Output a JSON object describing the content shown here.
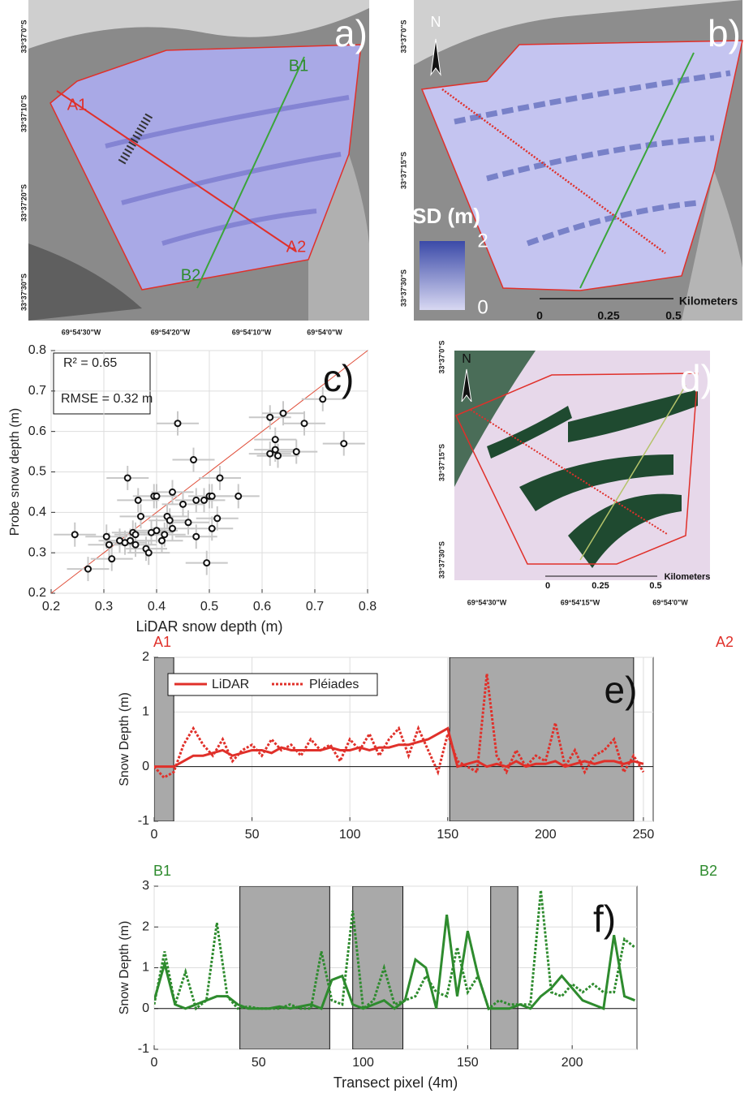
{
  "maps": {
    "a": {
      "label": "a)",
      "transects": [
        "A1",
        "A2",
        "B1",
        "B2"
      ],
      "lat_labels": [
        "33°37'0\"S",
        "33°37'10\"S",
        "33°37'20\"S",
        "33°37'30\"S"
      ],
      "lon_labels": [
        "69°54'30\"W",
        "69°54'20\"W",
        "69°54'10\"W",
        "69°54'0\"W"
      ]
    },
    "b": {
      "label": "b)",
      "north": "N",
      "legend_title": "SD (m)",
      "legend_max": "2",
      "legend_min": "0",
      "scale": [
        "0",
        "0.25",
        "0.5"
      ],
      "scale_unit": "Kilometers",
      "lat_labels": [
        "33°37'0\"S",
        "33°37'15\"S",
        "33°37'30\"S"
      ]
    },
    "d": {
      "label": "d)",
      "north": "N",
      "scale": [
        "0",
        "0.25",
        "0.5"
      ],
      "scale_unit": "Kilometers",
      "lat_labels": [
        "33°37'0\"S",
        "33°37'15\"S",
        "33°37'30\"S"
      ],
      "lon_labels": [
        "69°54'30\"W",
        "69°54'15\"W",
        "69°54'0\"W"
      ]
    }
  },
  "chart_data": [
    {
      "type": "scatter",
      "label": "c)",
      "annotations": [
        "R² = 0.65",
        "RMSE = 0.32 m"
      ],
      "x_label": "LiDAR snow depth (m)",
      "y_label": "Probe snow depth (m)",
      "xlim": [
        0.2,
        0.8
      ],
      "ylim": [
        0.2,
        0.8
      ],
      "xticks": [
        0.2,
        0.3,
        0.4,
        0.5,
        0.6,
        0.7,
        0.8
      ],
      "yticks": [
        0.2,
        0.3,
        0.4,
        0.5,
        0.6,
        0.7,
        0.8
      ],
      "grid": true,
      "color": "#111111",
      "error_color": "#c8c8c8",
      "reference_line_color": "#e0503c",
      "x_error": 0.04,
      "y_error": 0.03,
      "x": [
        0.245,
        0.27,
        0.305,
        0.31,
        0.315,
        0.33,
        0.34,
        0.345,
        0.35,
        0.355,
        0.36,
        0.36,
        0.365,
        0.37,
        0.38,
        0.385,
        0.39,
        0.395,
        0.4,
        0.4,
        0.41,
        0.415,
        0.42,
        0.425,
        0.43,
        0.43,
        0.44,
        0.45,
        0.46,
        0.47,
        0.475,
        0.475,
        0.49,
        0.495,
        0.5,
        0.505,
        0.505,
        0.515,
        0.52,
        0.555,
        0.615,
        0.615,
        0.625,
        0.625,
        0.63,
        0.64,
        0.665,
        0.68,
        0.715,
        0.755
      ],
      "y": [
        0.345,
        0.26,
        0.34,
        0.32,
        0.285,
        0.33,
        0.325,
        0.485,
        0.33,
        0.35,
        0.345,
        0.32,
        0.43,
        0.39,
        0.31,
        0.3,
        0.35,
        0.44,
        0.44,
        0.355,
        0.33,
        0.345,
        0.39,
        0.38,
        0.36,
        0.45,
        0.62,
        0.42,
        0.375,
        0.53,
        0.43,
        0.34,
        0.43,
        0.275,
        0.44,
        0.44,
        0.36,
        0.385,
        0.485,
        0.44,
        0.545,
        0.635,
        0.555,
        0.58,
        0.54,
        0.645,
        0.55,
        0.62,
        0.68,
        0.57
      ]
    },
    {
      "type": "line",
      "label": "e)",
      "start": "A1",
      "end": "A2",
      "label_color": "#e0302a",
      "y_label": "Snow Depth (m)",
      "xlim": [
        0,
        255
      ],
      "ylim": [
        -1,
        2
      ],
      "xticks": [
        0,
        50,
        100,
        150,
        200,
        250
      ],
      "yticks": [
        -1,
        0,
        1,
        2
      ],
      "grid": true,
      "legend": "top-left",
      "shaded": [
        [
          0,
          10
        ],
        [
          151,
          245
        ]
      ],
      "shade_color": "#a9a9a9",
      "x": [
        0,
        5,
        10,
        15,
        20,
        25,
        30,
        35,
        40,
        45,
        50,
        55,
        60,
        65,
        70,
        75,
        80,
        85,
        90,
        95,
        100,
        105,
        110,
        115,
        120,
        125,
        130,
        135,
        140,
        145,
        150,
        155,
        160,
        165,
        170,
        175,
        180,
        185,
        190,
        195,
        200,
        205,
        210,
        215,
        220,
        225,
        230,
        235,
        240,
        245,
        250
      ],
      "series": [
        {
          "name": "LiDAR",
          "color": "#e0302a",
          "style": "solid",
          "values": [
            0,
            0,
            0,
            0.1,
            0.2,
            0.2,
            0.25,
            0.3,
            0.2,
            0.25,
            0.3,
            0.3,
            0.25,
            0.35,
            0.3,
            0.3,
            0.3,
            0.3,
            0.35,
            0.3,
            0.3,
            0.35,
            0.3,
            0.35,
            0.35,
            0.4,
            0.4,
            0.45,
            0.5,
            0.6,
            0.7,
            0,
            0.05,
            0.1,
            0,
            0.05,
            0,
            0.1,
            0,
            0.05,
            0.05,
            0.1,
            0,
            0.05,
            0.1,
            0.05,
            0.1,
            0.1,
            0.05,
            0.1,
            0.05
          ]
        },
        {
          "name": "Pléiades",
          "color": "#e0302a",
          "style": "dotted",
          "values": [
            0,
            -0.2,
            -0.1,
            0.4,
            0.7,
            0.4,
            0.2,
            0.5,
            0.1,
            0.3,
            0.4,
            0.2,
            0.5,
            0.3,
            0.4,
            0.2,
            0.5,
            0.3,
            0.4,
            0.1,
            0.5,
            0.3,
            0.6,
            0.2,
            0.5,
            0.7,
            0.2,
            0.7,
            0.3,
            -0.1,
            0.6,
            0.1,
            0,
            -0.1,
            1.7,
            0.2,
            -0.1,
            0.3,
            0,
            0.2,
            0.1,
            0.8,
            0,
            0.3,
            -0.1,
            0.2,
            0.3,
            0.5,
            -0.1,
            0.2,
            -0.1
          ]
        }
      ]
    },
    {
      "type": "line",
      "label": "f)",
      "start": "B1",
      "end": "B2",
      "label_color": "#2e8b2e",
      "y_label": "Snow Depth (m)",
      "x_label": "Transect pixel (4m)",
      "xlim": [
        0,
        231
      ],
      "ylim": [
        -1,
        3
      ],
      "xticks": [
        0,
        50,
        100,
        150,
        200
      ],
      "yticks": [
        -1,
        0,
        1,
        2,
        3
      ],
      "grid": true,
      "shaded": [
        [
          41,
          84
        ],
        [
          95,
          119
        ],
        [
          161,
          174
        ]
      ],
      "shade_color": "#a9a9a9",
      "x": [
        0,
        5,
        10,
        15,
        20,
        25,
        30,
        35,
        40,
        45,
        50,
        55,
        60,
        65,
        70,
        75,
        80,
        85,
        90,
        95,
        100,
        105,
        110,
        115,
        120,
        125,
        130,
        135,
        140,
        145,
        150,
        155,
        160,
        165,
        170,
        175,
        180,
        185,
        190,
        195,
        200,
        205,
        210,
        215,
        220,
        225,
        230
      ],
      "series": [
        {
          "color": "#2e8b2e",
          "style": "solid",
          "values": [
            0.2,
            1.1,
            0.1,
            0,
            0.1,
            0.2,
            0.3,
            0.3,
            0.1,
            0,
            0,
            0,
            0.05,
            0,
            0.05,
            0.1,
            0,
            0.7,
            0.8,
            0.1,
            0,
            0.1,
            0.2,
            0,
            0.2,
            1.2,
            1,
            0,
            2.3,
            0.3,
            1.9,
            0.8,
            0,
            0,
            0,
            0.1,
            0,
            0.3,
            0.5,
            0.8,
            0.5,
            0.2,
            0.1,
            0,
            1.8,
            0.3,
            0.2
          ]
        },
        {
          "color": "#2e8b2e",
          "style": "dotted",
          "values": [
            0.1,
            1.4,
            0.1,
            0.9,
            0,
            0.2,
            2.1,
            0.3,
            0,
            0.05,
            0,
            0,
            0,
            0.1,
            0,
            0,
            1.4,
            0.2,
            0.1,
            2.4,
            0,
            0.2,
            1,
            0.1,
            0.2,
            0.3,
            0.8,
            0.4,
            0.3,
            1.5,
            0.4,
            0.8,
            0,
            0.2,
            0.1,
            0.1,
            0.1,
            2.9,
            0.4,
            0.3,
            0.6,
            0.4,
            0.6,
            0.4,
            0.4,
            1.7,
            1.5
          ]
        }
      ]
    }
  ]
}
